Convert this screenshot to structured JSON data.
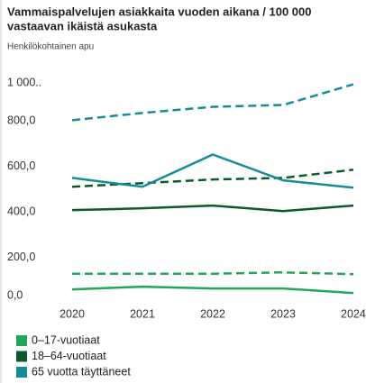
{
  "chart_data": {
    "type": "line",
    "title_lines": [
      "Vammaispalvelujen asiakkaita vuoden aikana / 100 000",
      "vastaavan ikäistä asukasta"
    ],
    "subtitle": "Henkilökohtainen apu",
    "categories": [
      "2020",
      "2021",
      "2022",
      "2023",
      "2024"
    ],
    "series": [
      {
        "name": "0–17-vuotiaat",
        "color": "#22a65e",
        "values": [
          59,
          71,
          63,
          63,
          43
        ],
        "values_dashed": [
          128,
          128,
          128,
          134,
          126
        ]
      },
      {
        "name": "18–64-vuotiaat",
        "color": "#0b5a2a",
        "values": [
          408,
          416,
          428,
          404,
          428
        ],
        "values_dashed": [
          511,
          527,
          543,
          550,
          586
        ]
      },
      {
        "name": "65 vuotta täyttäneet",
        "color": "#158c9a",
        "values": [
          550,
          511,
          653,
          539,
          507
        ],
        "values_dashed": [
          804,
          836,
          863,
          871,
          962
        ]
      }
    ],
    "ylim": [
      0,
      1000
    ],
    "yticks": [
      {
        "value": 0,
        "label": "0,0"
      },
      {
        "value": 200,
        "label": "200,0"
      },
      {
        "value": 400,
        "label": "400,0"
      },
      {
        "value": 600,
        "label": "600,0"
      },
      {
        "value": 800,
        "label": "800,0"
      },
      {
        "value": 1000,
        "label": "1 000.."
      }
    ]
  }
}
